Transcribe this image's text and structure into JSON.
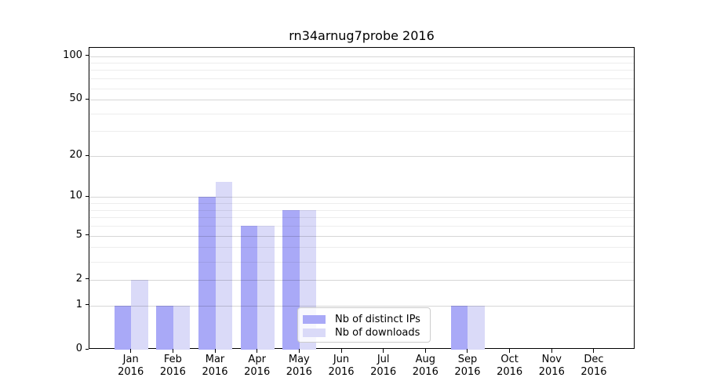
{
  "figure": {
    "background_color": "#ffffff"
  },
  "chart_data": {
    "type": "bar",
    "title": "rn34arnug7probe 2016",
    "categories": [
      "Jan",
      "Feb",
      "Mar",
      "Apr",
      "May",
      "Jun",
      "Jul",
      "Aug",
      "Sep",
      "Oct",
      "Nov",
      "Dec"
    ],
    "category_year": "2016",
    "series": [
      {
        "name": "Nb of distinct IPs",
        "color": "#a9a9f7",
        "values": [
          1,
          1,
          10,
          6,
          8,
          0,
          0,
          0,
          1,
          0,
          0,
          0
        ]
      },
      {
        "name": "Nb of downloads",
        "color": "#dadaf8",
        "values": [
          2,
          1,
          13,
          6,
          8,
          0,
          0,
          0,
          1,
          0,
          0,
          0
        ]
      }
    ],
    "xlabel": "",
    "ylabel": "",
    "yscale": "log1p",
    "ylim": [
      0,
      111
    ],
    "ytick_values": [
      0,
      1,
      2,
      5,
      10,
      20,
      50,
      100
    ],
    "ytick_labels": [
      "0",
      "1",
      "2",
      "5",
      "10",
      "20",
      "50",
      "100"
    ],
    "yminor_values": [
      3,
      4,
      6,
      7,
      8,
      9,
      30,
      40,
      60,
      70,
      80,
      90
    ],
    "grid": "on",
    "grid_which": "both",
    "legend_position": "lower center"
  }
}
